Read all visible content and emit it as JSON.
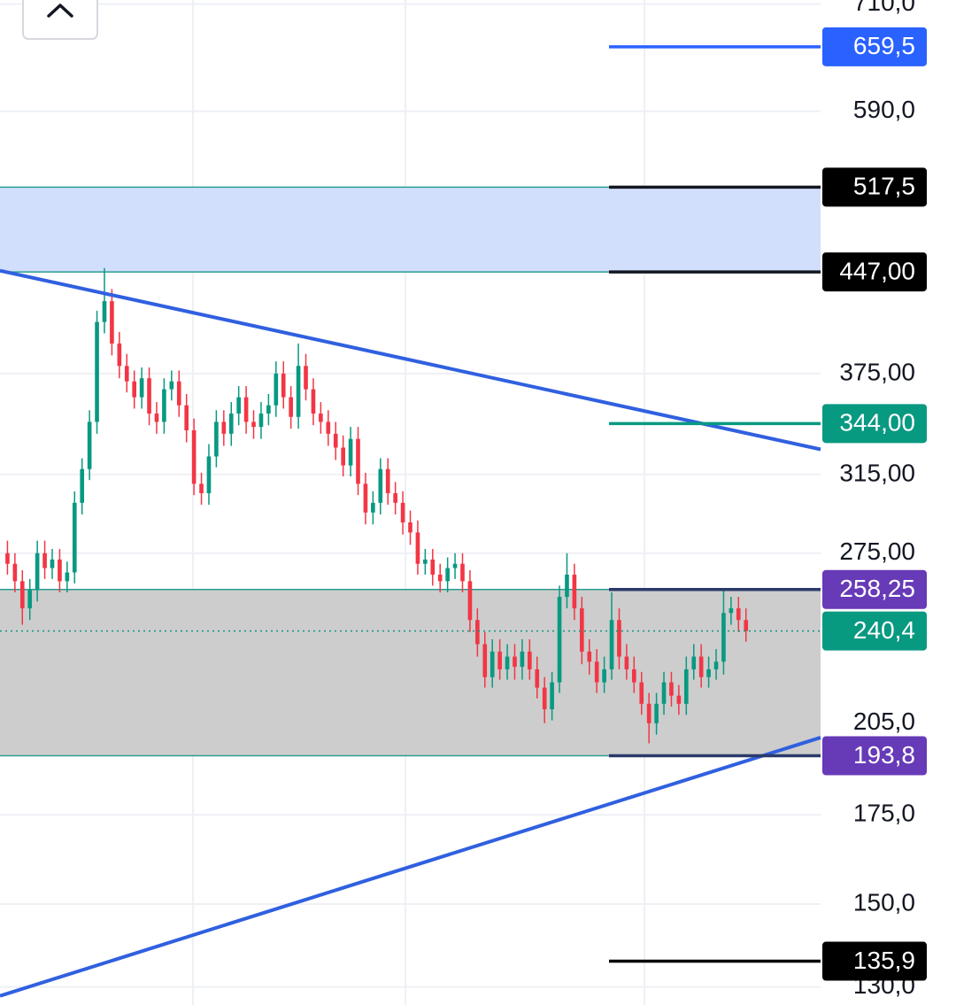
{
  "chart_data": {
    "type": "candlestick",
    "log_scale": true,
    "grid": true,
    "up_color": "#089981",
    "down_color": "#f23645",
    "xlim": [
      0,
      110
    ],
    "ylim": [
      126,
      715
    ],
    "yticks": [
      {
        "value": 710,
        "label": "710,0"
      },
      {
        "value": 590,
        "label": "590,0"
      },
      {
        "value": 375,
        "label": "375,00"
      },
      {
        "value": 315,
        "label": "315,00"
      },
      {
        "value": 275,
        "label": "275,00"
      },
      {
        "value": 205,
        "label": "205,0"
      },
      {
        "value": 175,
        "label": "175,0"
      },
      {
        "value": 150,
        "label": "150,0"
      },
      {
        "value": 130,
        "label": "130,0"
      }
    ],
    "x": [
      1,
      2,
      3,
      4,
      5,
      6,
      7,
      8,
      9,
      10,
      11,
      12,
      13,
      14,
      15,
      16,
      17,
      18,
      19,
      20,
      21,
      22,
      23,
      24,
      25,
      26,
      27,
      28,
      29,
      30,
      31,
      32,
      33,
      34,
      35,
      36,
      37,
      38,
      39,
      40,
      41,
      42,
      43,
      44,
      45,
      46,
      47,
      48,
      49,
      50,
      51,
      52,
      53,
      54,
      55,
      56,
      57,
      58,
      59,
      60,
      61,
      62,
      63,
      64,
      65,
      66,
      67,
      68,
      69,
      70,
      71,
      72,
      73,
      74,
      75,
      76,
      77,
      78,
      79,
      80,
      81,
      82,
      83,
      84,
      85,
      86,
      87,
      88,
      89,
      90,
      91,
      92,
      93,
      94,
      95,
      96,
      97,
      98,
      99,
      100
    ],
    "open": [
      275,
      270,
      262,
      250,
      258,
      275,
      268,
      272,
      262,
      266,
      300,
      318,
      345,
      410,
      425,
      395,
      380,
      370,
      360,
      372,
      350,
      345,
      365,
      370,
      355,
      340,
      310,
      305,
      325,
      345,
      338,
      350,
      360,
      345,
      342,
      350,
      355,
      375,
      360,
      348,
      380,
      365,
      350,
      345,
      338,
      330,
      320,
      335,
      310,
      295,
      300,
      318,
      305,
      300,
      290,
      285,
      270,
      272,
      265,
      262,
      268,
      270,
      262,
      245,
      235,
      222,
      232,
      225,
      230,
      226,
      232,
      225,
      218,
      210,
      220,
      255,
      265,
      250,
      232,
      228,
      220,
      225,
      245,
      230,
      225,
      220,
      212,
      205,
      212,
      220,
      215,
      212,
      225,
      230,
      222,
      225,
      228,
      248,
      250,
      245
    ],
    "high": [
      281,
      275,
      267,
      263,
      281,
      281,
      277,
      277,
      271,
      306,
      324,
      352,
      418,
      450,
      434,
      403,
      388,
      377,
      379,
      379,
      357,
      372,
      377,
      377,
      362,
      347,
      316,
      332,
      352,
      352,
      357,
      367,
      367,
      352,
      357,
      362,
      383,
      383,
      367,
      395,
      388,
      372,
      357,
      352,
      345,
      337,
      342,
      342,
      316,
      306,
      324,
      324,
      311,
      306,
      296,
      291,
      277,
      277,
      270,
      273,
      275,
      275,
      267,
      250,
      240,
      237,
      237,
      235,
      235,
      237,
      237,
      230,
      222,
      224,
      260,
      275,
      270,
      255,
      237,
      233,
      230,
      257,
      250,
      235,
      230,
      224,
      216,
      216,
      224,
      224,
      219,
      230,
      235,
      235,
      230,
      233,
      258,
      255,
      255,
      250
    ],
    "low": [
      265,
      257,
      243,
      245,
      253,
      263,
      263,
      257,
      257,
      261,
      294,
      312,
      338,
      402,
      387,
      372,
      363,
      353,
      353,
      343,
      338,
      338,
      358,
      348,
      333,
      304,
      299,
      299,
      319,
      331,
      331,
      343,
      338,
      335,
      335,
      343,
      348,
      353,
      341,
      341,
      358,
      343,
      338,
      331,
      323,
      314,
      314,
      304,
      289,
      289,
      294,
      299,
      294,
      284,
      279,
      265,
      265,
      260,
      257,
      257,
      263,
      257,
      240,
      230,
      218,
      218,
      221,
      221,
      221,
      221,
      221,
      214,
      205,
      206,
      216,
      250,
      245,
      227,
      223,
      216,
      216,
      221,
      225,
      221,
      216,
      208,
      198,
      201,
      208,
      211,
      208,
      208,
      221,
      218,
      218,
      221,
      223,
      243,
      240,
      236
    ],
    "close": [
      270,
      262,
      250,
      258,
      275,
      268,
      272,
      262,
      266,
      300,
      318,
      345,
      410,
      425,
      395,
      380,
      370,
      360,
      372,
      350,
      345,
      365,
      370,
      355,
      340,
      310,
      305,
      325,
      345,
      338,
      350,
      360,
      345,
      342,
      350,
      355,
      375,
      360,
      348,
      380,
      365,
      350,
      345,
      338,
      330,
      320,
      335,
      310,
      295,
      300,
      318,
      305,
      300,
      290,
      285,
      270,
      272,
      265,
      262,
      268,
      270,
      262,
      245,
      235,
      222,
      232,
      225,
      230,
      226,
      232,
      225,
      218,
      210,
      220,
      255,
      265,
      250,
      232,
      228,
      220,
      225,
      245,
      230,
      225,
      220,
      212,
      205,
      212,
      220,
      215,
      212,
      225,
      230,
      222,
      225,
      228,
      248,
      250,
      245,
      240.4
    ],
    "zones": [
      {
        "from": 447,
        "to": 517.5,
        "color": "#d1dffd"
      },
      {
        "from": 193.8,
        "to": 258.25,
        "color": "#cdcdcd"
      }
    ],
    "trendlines": [
      {
        "x": [
          0,
          110
        ],
        "y": [
          448,
          329
        ],
        "color": "#3060e0"
      },
      {
        "x": [
          0,
          110
        ],
        "y": [
          128,
          200
        ],
        "color": "#3060e0"
      }
    ],
    "price_lines": [
      {
        "value": 659.5,
        "label": "659,5",
        "color": "#2962ff",
        "line_color": "#2962ff",
        "style": "solid"
      },
      {
        "value": 517.5,
        "label": "517,5",
        "color": "#000000",
        "line_color": "#131722",
        "style": "solid"
      },
      {
        "value": 447,
        "label": "447,00",
        "color": "#000000",
        "line_color": "#131722",
        "style": "solid"
      },
      {
        "value": 344,
        "label": "344,00",
        "color": "#089981",
        "line_color": "#089981",
        "style": "solid"
      },
      {
        "value": 258.25,
        "label": "258,25",
        "color": "#673ab7",
        "line_color": "#2a3a6a",
        "style": "solid"
      },
      {
        "value": 240.4,
        "label": "240,4",
        "color": "#089981",
        "line_color": "#089981",
        "style": "dotted"
      },
      {
        "value": 193.8,
        "label": "193,8",
        "color": "#673ab7",
        "line_color": "#2a3a6a",
        "style": "solid"
      },
      {
        "value": 135.9,
        "label": "135,9",
        "color": "#000000",
        "line_color": "#000000",
        "style": "solid"
      }
    ]
  }
}
